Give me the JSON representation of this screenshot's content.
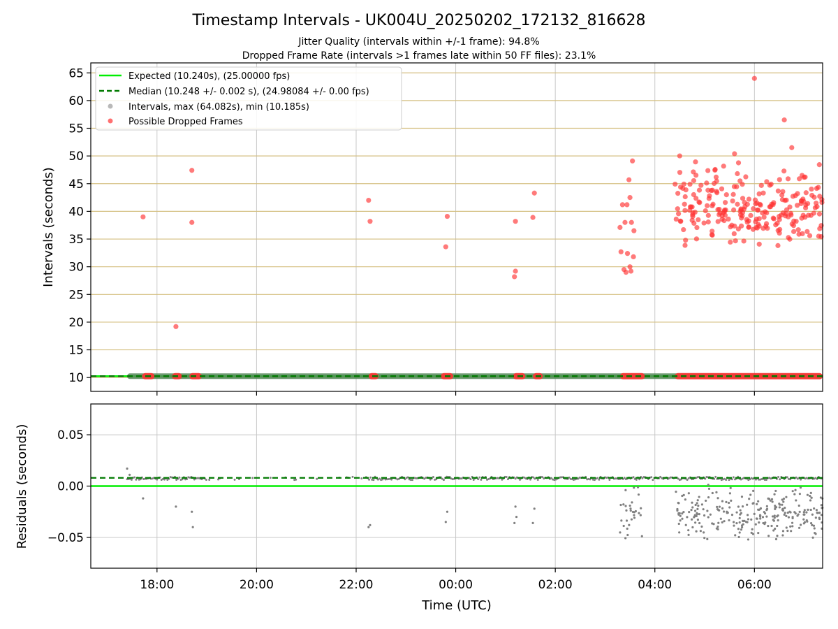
{
  "chart_data": {
    "type": "scatter",
    "title": "Timestamp Intervals - UK004U_20250202_172132_816628",
    "subtitles": [
      "Jitter Quality (intervals within +/-1 frame): 94.8%",
      "Dropped Frame Rate (intervals >1 frames late within 50 FF files): 23.1%"
    ],
    "xlabel": "Time (UTC)",
    "x_range_hours": [
      16.67,
      31.37
    ],
    "x_ticks": [
      {
        "label": "18:00",
        "hour": 18
      },
      {
        "label": "20:00",
        "hour": 20
      },
      {
        "label": "22:00",
        "hour": 22
      },
      {
        "label": "00:00",
        "hour": 24
      },
      {
        "label": "02:00",
        "hour": 26
      },
      {
        "label": "04:00",
        "hour": 28
      },
      {
        "label": "06:00",
        "hour": 30
      }
    ],
    "colors": {
      "expected": "#00ee00",
      "median": "#007a00",
      "intervals": "#808080",
      "dropped": "#ff3333",
      "hgrid_top": "#d4bf80",
      "grid": "#c8c8c8"
    },
    "legend": {
      "position": "top-left",
      "entries": [
        "Expected (10.240s), (25.00000 fps)",
        "Median (10.248 +/- 0.002 s), (24.98084 +/- 0.00 fps)",
        "Intervals, max (64.082s), min (10.185s)",
        "Possible Dropped Frames"
      ]
    },
    "top_panel": {
      "ylabel": "Intervals (seconds)",
      "ylim": [
        7.5,
        66.8
      ],
      "y_ticks": [
        "10",
        "15",
        "20",
        "25",
        "30",
        "35",
        "40",
        "45",
        "50",
        "55",
        "60",
        "65"
      ],
      "expected": 10.24,
      "median": 10.248,
      "intervals_band": {
        "x_start": 17.4,
        "x_end": 31.37,
        "y": 10.24
      },
      "dropped_near_baseline_clusters": [
        [
          17.7,
          17.95
        ],
        [
          18.3,
          18.5
        ],
        [
          18.65,
          18.9
        ],
        [
          22.25,
          22.45
        ],
        [
          23.7,
          23.95
        ],
        [
          25.15,
          25.4
        ],
        [
          25.55,
          25.75
        ],
        [
          27.3,
          27.8
        ]
      ],
      "dropped_near_baseline_dense": [
        28.4,
        31.37
      ],
      "dropped_points": [
        [
          17.72,
          39.0
        ],
        [
          18.38,
          19.2
        ],
        [
          18.7,
          47.4
        ],
        [
          18.7,
          38.0
        ],
        [
          22.25,
          42.0
        ],
        [
          22.28,
          38.2
        ],
        [
          23.8,
          33.6
        ],
        [
          23.83,
          39.1
        ],
        [
          25.2,
          38.2
        ],
        [
          25.2,
          29.2
        ],
        [
          25.18,
          28.2
        ],
        [
          25.55,
          38.9
        ],
        [
          25.58,
          43.3
        ],
        [
          27.3,
          37.1
        ],
        [
          27.32,
          32.7
        ],
        [
          27.35,
          41.2
        ],
        [
          27.38,
          29.5
        ],
        [
          27.4,
          38.0
        ],
        [
          27.42,
          29.0
        ],
        [
          27.44,
          41.2
        ],
        [
          27.45,
          32.4
        ],
        [
          27.48,
          45.7
        ],
        [
          27.5,
          42.5
        ],
        [
          27.5,
          30.0
        ],
        [
          27.52,
          29.2
        ],
        [
          27.53,
          38.0
        ],
        [
          27.55,
          49.1
        ],
        [
          27.57,
          31.8
        ],
        [
          27.58,
          36.5
        ]
      ],
      "dense_region": {
        "x_start": 28.4,
        "x_end": 31.37,
        "y_min": 30.5,
        "y_max": 50.5,
        "count": 240,
        "seed": 42
      },
      "dense_outliers": [
        [
          30.0,
          64.0
        ],
        [
          30.6,
          56.5
        ],
        [
          30.75,
          51.5
        ],
        [
          29.6,
          50.4
        ]
      ]
    },
    "bottom_panel": {
      "ylabel": "Residuals (seconds)",
      "ylim": [
        -0.08,
        0.08
      ],
      "y_ticks": [
        {
          "label": "0.05",
          "value": 0.05
        },
        {
          "label": "0.00",
          "value": 0.0
        },
        {
          "label": "−0.05",
          "value": -0.05
        }
      ],
      "expected_residual": 0.0,
      "median_residual": 0.008,
      "baseline_residual_y": 0.0075,
      "sparse_points": [
        [
          17.4,
          0.017
        ],
        [
          17.45,
          0.011
        ],
        [
          17.72,
          -0.012
        ],
        [
          18.38,
          -0.02
        ],
        [
          18.7,
          -0.025
        ],
        [
          18.72,
          -0.04
        ],
        [
          22.25,
          -0.04
        ],
        [
          22.28,
          -0.038
        ],
        [
          23.8,
          -0.035
        ],
        [
          23.83,
          -0.025
        ],
        [
          25.2,
          -0.02
        ],
        [
          25.18,
          -0.036
        ],
        [
          25.22,
          -0.03
        ],
        [
          25.55,
          -0.036
        ],
        [
          25.58,
          -0.022
        ]
      ],
      "spread_region": {
        "x_start": 27.3,
        "x_end": 31.37,
        "y_min": -0.055,
        "y_max": 0.004,
        "count": 300,
        "seed": 7
      }
    }
  }
}
